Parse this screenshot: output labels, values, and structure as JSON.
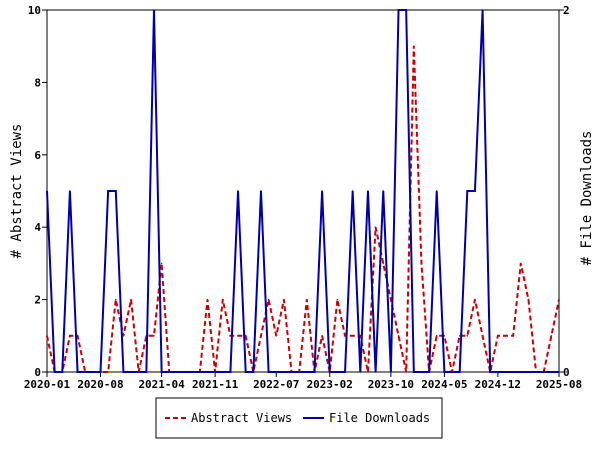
{
  "chart_data": {
    "type": "line",
    "ylabel_left": "# Abstract Views",
    "ylabel_right": "# File Downloads",
    "ylim_left": [
      0,
      10
    ],
    "ylim_right": [
      0,
      2
    ],
    "yticks_left": [
      "0",
      "2",
      "4",
      "6",
      "8",
      "10"
    ],
    "yticks_right": [
      "0",
      "2"
    ],
    "xticks": [
      "2020-01",
      "2020-08",
      "2021-04",
      "2021-11",
      "2022-07",
      "2023-02",
      "2023-10",
      "2024-05",
      "2024-12",
      "2025-08"
    ],
    "x_range": [
      "2020-01",
      "2025-08"
    ],
    "grid": false,
    "legend": "bottom",
    "series": [
      {
        "name": "Abstract Views",
        "color": "#cc0000",
        "style": "dashed",
        "axis": "left",
        "x": [
          "2020-01",
          "2020-02",
          "2020-03",
          "2020-04",
          "2020-05",
          "2020-06",
          "2020-07",
          "2020-08",
          "2020-09",
          "2020-10",
          "2020-11",
          "2020-12",
          "2021-01",
          "2021-02",
          "2021-03",
          "2021-04",
          "2021-05",
          "2021-06",
          "2021-07",
          "2021-08",
          "2021-09",
          "2021-10",
          "2021-11",
          "2021-12",
          "2022-01",
          "2022-02",
          "2022-03",
          "2022-04",
          "2022-05",
          "2022-06",
          "2022-07",
          "2022-08",
          "2022-09",
          "2022-10",
          "2022-11",
          "2022-12",
          "2023-01",
          "2023-02",
          "2023-03",
          "2023-04",
          "2023-05",
          "2023-06",
          "2023-07",
          "2023-08",
          "2023-09",
          "2023-10",
          "2023-11",
          "2023-12",
          "2024-01",
          "2024-02",
          "2024-03",
          "2024-04",
          "2024-05",
          "2024-06",
          "2024-07",
          "2024-08",
          "2024-09",
          "2024-10",
          "2024-11",
          "2024-12",
          "2025-01",
          "2025-02",
          "2025-03",
          "2025-04",
          "2025-05",
          "2025-06",
          "2025-07",
          "2025-08"
        ],
        "values": [
          1,
          0,
          0,
          1,
          1,
          0,
          0,
          0,
          0,
          2,
          1,
          2,
          0,
          1,
          1,
          3,
          0,
          0,
          0,
          0,
          0,
          2,
          0,
          2,
          1,
          1,
          1,
          0,
          1,
          2,
          1,
          2,
          0,
          0,
          2,
          0,
          1,
          0,
          2,
          1,
          1,
          1,
          0,
          4,
          3,
          2,
          1,
          0,
          9,
          3,
          0,
          1,
          1,
          0,
          1,
          1,
          2,
          1,
          0,
          1,
          1,
          1,
          3,
          2,
          0,
          0,
          1,
          2
        ]
      },
      {
        "name": "File Downloads",
        "color": "#0000aa",
        "style": "solid",
        "axis": "right",
        "x": [
          "2020-01",
          "2020-02",
          "2020-03",
          "2020-04",
          "2020-05",
          "2020-06",
          "2020-07",
          "2020-08",
          "2020-09",
          "2020-10",
          "2020-11",
          "2020-12",
          "2021-01",
          "2021-02",
          "2021-03",
          "2021-04",
          "2021-05",
          "2021-06",
          "2021-07",
          "2021-08",
          "2021-09",
          "2021-10",
          "2021-11",
          "2021-12",
          "2022-01",
          "2022-02",
          "2022-03",
          "2022-04",
          "2022-05",
          "2022-06",
          "2022-07",
          "2022-08",
          "2022-09",
          "2022-10",
          "2022-11",
          "2022-12",
          "2023-01",
          "2023-02",
          "2023-03",
          "2023-04",
          "2023-05",
          "2023-06",
          "2023-07",
          "2023-08",
          "2023-09",
          "2023-10",
          "2023-11",
          "2023-12",
          "2024-01",
          "2024-02",
          "2024-03",
          "2024-04",
          "2024-05",
          "2024-06",
          "2024-07",
          "2024-08",
          "2024-09",
          "2024-10",
          "2024-11",
          "2024-12",
          "2025-01",
          "2025-02",
          "2025-03",
          "2025-04",
          "2025-05",
          "2025-06",
          "2025-07",
          "2025-08"
        ],
        "values": [
          1,
          0,
          0,
          1,
          0,
          0,
          0,
          0,
          1,
          1,
          0,
          0,
          0,
          0,
          2,
          0,
          0,
          0,
          0,
          0,
          0,
          0,
          0,
          0,
          0,
          1,
          0,
          0,
          1,
          0,
          0,
          0,
          0,
          0,
          0,
          0,
          1,
          0,
          0,
          0,
          1,
          0,
          1,
          0,
          1,
          0,
          2,
          2,
          0,
          0,
          0,
          1,
          0,
          0,
          0,
          1,
          1,
          2,
          0,
          0,
          0,
          0,
          0,
          0,
          0,
          0,
          0,
          0
        ]
      }
    ]
  }
}
